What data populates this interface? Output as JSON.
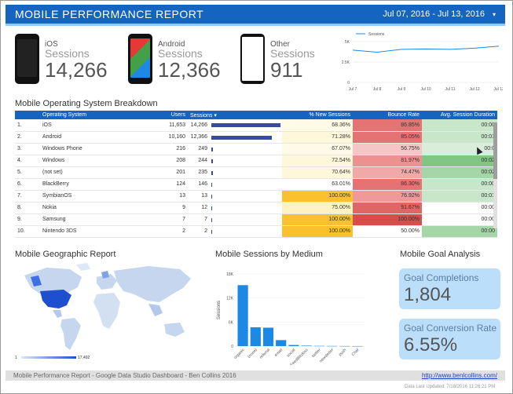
{
  "header": {
    "title": "MOBILE PERFORMANCE REPORT",
    "date_range": "Jul 07, 2016 - Jul 13, 2016",
    "caret": "▾"
  },
  "devices": [
    {
      "name": "iOS",
      "label": "Sessions",
      "value": "14,266"
    },
    {
      "name": "Android",
      "label": "Sessions",
      "value": "12,366"
    },
    {
      "name": "Other",
      "label": "Sessions",
      "value": "911"
    }
  ],
  "sessions_chart": {
    "legend": "Sessions",
    "y_ticks": [
      "5K",
      "2.5K",
      "0"
    ],
    "x_ticks": [
      "Jul 7",
      "Jul 8",
      "Jul 9",
      "Jul 10",
      "Jul 11",
      "Jul 12",
      "Jul 13"
    ]
  },
  "os_table": {
    "title": "Mobile Operating System Breakdown",
    "headers": [
      "",
      "Operating System",
      "Users",
      "Sessions ▾",
      "% New Sessions",
      "Bounce Rate",
      "Avg. Session Duration"
    ],
    "rows": [
      {
        "idx": "1.",
        "os": "iOS",
        "users": "11,653",
        "sessions": "14,266",
        "bar": 1.0,
        "new": "68.36%",
        "bounce": "86.85%",
        "dur": "00:00",
        "new_bg": "#fffbe6",
        "bounce_bg": "#e57373",
        "dur_bg": "#c8e6c9"
      },
      {
        "idx": "2.",
        "os": "Android",
        "users": "10,160",
        "sessions": "12,366",
        "bar": 0.87,
        "new": "71.28%",
        "bounce": "85.05%",
        "dur": "00:01",
        "new_bg": "#fff7d9",
        "bounce_bg": "#e57373",
        "dur_bg": "#c8e6c9"
      },
      {
        "idx": "3.",
        "os": "Windows Phone",
        "users": "216",
        "sessions": "249",
        "bar": 0.02,
        "new": "67.07%",
        "bounce": "56.75%",
        "dur": "00:0",
        "new_bg": "#fffbe6",
        "bounce_bg": "#f6c6c6",
        "dur_bg": "#d9eed9"
      },
      {
        "idx": "4.",
        "os": "Windows",
        "users": "208",
        "sessions": "244",
        "bar": 0.02,
        "new": "72.54%",
        "bounce": "81.97%",
        "dur": "00:02",
        "new_bg": "#fff7d9",
        "bounce_bg": "#ec9090",
        "dur_bg": "#81c784"
      },
      {
        "idx": "5.",
        "os": "(not set)",
        "users": "201",
        "sessions": "235",
        "bar": 0.02,
        "new": "70.64%",
        "bounce": "74.47%",
        "dur": "00:02",
        "new_bg": "#fff7d9",
        "bounce_bg": "#f0a8a8",
        "dur_bg": "#a5d6a7"
      },
      {
        "idx": "6.",
        "os": "BlackBerry",
        "users": "124",
        "sessions": "146",
        "bar": 0.01,
        "new": "63.01%",
        "bounce": "86.30%",
        "dur": "00:00",
        "new_bg": "#ffffff",
        "bounce_bg": "#e57373",
        "dur_bg": "#c8e6c9"
      },
      {
        "idx": "7.",
        "os": "SymbianOS",
        "users": "13",
        "sessions": "13",
        "bar": 0.005,
        "new": "100.00%",
        "bounce": "76.92%",
        "dur": "00:01",
        "new_bg": "#fbc02d",
        "bounce_bg": "#ef9a9a",
        "dur_bg": "#c8e6c9"
      },
      {
        "idx": "8.",
        "os": "Nokia",
        "users": "9",
        "sessions": "12",
        "bar": 0.005,
        "new": "75.00%",
        "bounce": "91.67%",
        "dur": "00:00",
        "new_bg": "#fff3c4",
        "bounce_bg": "#e06666",
        "dur_bg": "#ffffff"
      },
      {
        "idx": "9.",
        "os": "Samsung",
        "users": "7",
        "sessions": "7",
        "bar": 0.005,
        "new": "100.00%",
        "bounce": "100.00%",
        "dur": "00:00",
        "new_bg": "#fbc02d",
        "bounce_bg": "#d84c4c",
        "dur_bg": "#ffffff"
      },
      {
        "idx": "10.",
        "os": "Nintendo 3DS",
        "users": "2",
        "sessions": "2",
        "bar": 0.005,
        "new": "100.00%",
        "bounce": "50.00%",
        "dur": "00:00",
        "new_bg": "#fbc02d",
        "bounce_bg": "#ffffff",
        "dur_bg": "#a5d6a7"
      }
    ]
  },
  "geo": {
    "title": "Mobile Geographic Report",
    "legend_min": "1",
    "legend_max": "17,492"
  },
  "medium": {
    "title": "Mobile Sessions by Medium"
  },
  "goals": {
    "title": "Mobile Goal Analysis",
    "completions_label": "Goal Completions",
    "completions_value": "1,804",
    "rate_label": "Goal Conversion Rate",
    "rate_value": "6.55%"
  },
  "footer": {
    "left": "Mobile Performance Report - Google Data Studio Dashboard - Ben Collins 2016",
    "link": "http://www.benlcollins.com/",
    "updated": "Data Last Updated: 7/18/2016 11:26:21 PM"
  },
  "chart_data": [
    {
      "type": "line",
      "title": "",
      "x": [
        "Jul 7",
        "Jul 8",
        "Jul 9",
        "Jul 10",
        "Jul 11",
        "Jul 12",
        "Jul 13"
      ],
      "series": [
        {
          "name": "Sessions",
          "values": [
            3950,
            3700,
            4050,
            4100,
            4050,
            4200,
            4450
          ]
        }
      ],
      "ylim": [
        0,
        5000
      ],
      "xlabel": "",
      "ylabel": ""
    },
    {
      "type": "bar",
      "title": "Mobile Sessions by Medium",
      "categories": [
        "organic",
        "(none)",
        "referral",
        "email",
        "social",
        "FeedBlitzkiss",
        "twitter",
        "newsletter",
        "push",
        "Chat"
      ],
      "values": [
        15200,
        4700,
        4600,
        1500,
        280,
        120,
        60,
        40,
        20,
        10
      ],
      "ylim": [
        0,
        18000
      ],
      "y_ticks": [
        "0",
        "6K",
        "12K",
        "18K"
      ],
      "xlabel": "",
      "ylabel": "Sessions"
    }
  ]
}
